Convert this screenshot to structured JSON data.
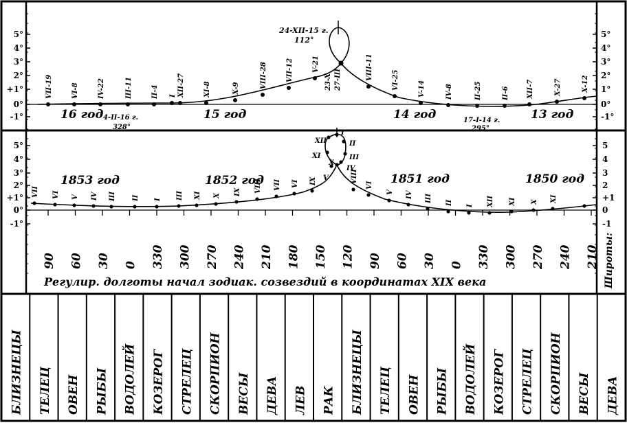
{
  "domain_note": "",
  "yscale_labels": [
    "5°",
    "4°",
    "3°",
    "2°",
    "+1°",
    "0°",
    "-1°"
  ],
  "yscale_labels_right_top": [
    "5°",
    "4°",
    "3°",
    "2°",
    "1°",
    "0°",
    "-1°"
  ],
  "yscale_labels_right_bottom": [
    "5",
    "4",
    "3",
    "2",
    "+1",
    "0",
    "-1"
  ],
  "yscale_labels_left_bottom": [
    "5°",
    "4°",
    "3°",
    "2°",
    "+1°",
    "0°",
    "-1°"
  ],
  "right_axis_label": "Широты:",
  "top_panel": {
    "year_labels": [
      "16 год",
      "15 год",
      "14 год",
      "13 год"
    ],
    "annotations": [
      "24-XII-15 г.",
      "112°",
      "23-X",
      "27-III",
      "4-II-16 г.",
      "328°",
      "17-I-14 г.",
      "295°"
    ],
    "point_labels": [
      "VII-19",
      "VI-8",
      "IV-22",
      "III-11",
      "II-4",
      "I",
      "XII-27",
      "XI-8",
      "X-9",
      "VIII-28",
      "VII-12",
      "V-21",
      "VIII-11",
      "VI-25",
      "V-14",
      "IV-8",
      "II-25",
      "II-6",
      "XII-7",
      "X-27",
      "X-12"
    ]
  },
  "bottom_panel": {
    "year_labels": [
      "1853 год",
      "1852 год",
      "1851 год",
      "1850 год"
    ],
    "loop_labels": [
      "XII",
      "XI",
      "X",
      "V",
      "I",
      "II",
      "III",
      "IV"
    ],
    "point_labels": [
      "VII",
      "VI",
      "V",
      "IV",
      "III",
      "II",
      "I",
      "III",
      "XI",
      "X",
      "IX",
      "VIII",
      "VII",
      "VI",
      "IX",
      "VIII",
      "VI",
      "V",
      "IV",
      "III",
      "II",
      "I",
      "XII",
      "XI",
      "X",
      "XI"
    ]
  },
  "longitude_ticks": [
    "90",
    "60",
    "30",
    "0",
    "330",
    "300",
    "270",
    "240",
    "210",
    "180",
    "150",
    "120",
    "90",
    "60",
    "30",
    "0",
    "330",
    "300",
    "270",
    "240",
    "210"
  ],
  "caption": "Регулир. долготы начал зодиак. созвездий в координатах XIX века",
  "zodiac_signs": [
    "БЛИЗНЕЦЫ",
    "ТЕЛЕЦ",
    "ОВЕН",
    "РЫБЫ",
    "ВОДОЛЕЙ",
    "КОЗЕРОГ",
    "СТРЕЛЕЦ",
    "СКОРПИОН",
    "ВЕСЫ",
    "ДЕВА",
    "ЛЕВ",
    "РАК",
    "БЛИЗНЕЦЫ",
    "ТЕЛЕЦ",
    "ОВЕН",
    "РЫБЫ",
    "ВОДОЛЕЙ",
    "КОЗЕРОГ",
    "СТРЕЛЕЦ",
    "СКОРПИОН",
    "ВЕСЫ",
    "ДЕВА"
  ]
}
